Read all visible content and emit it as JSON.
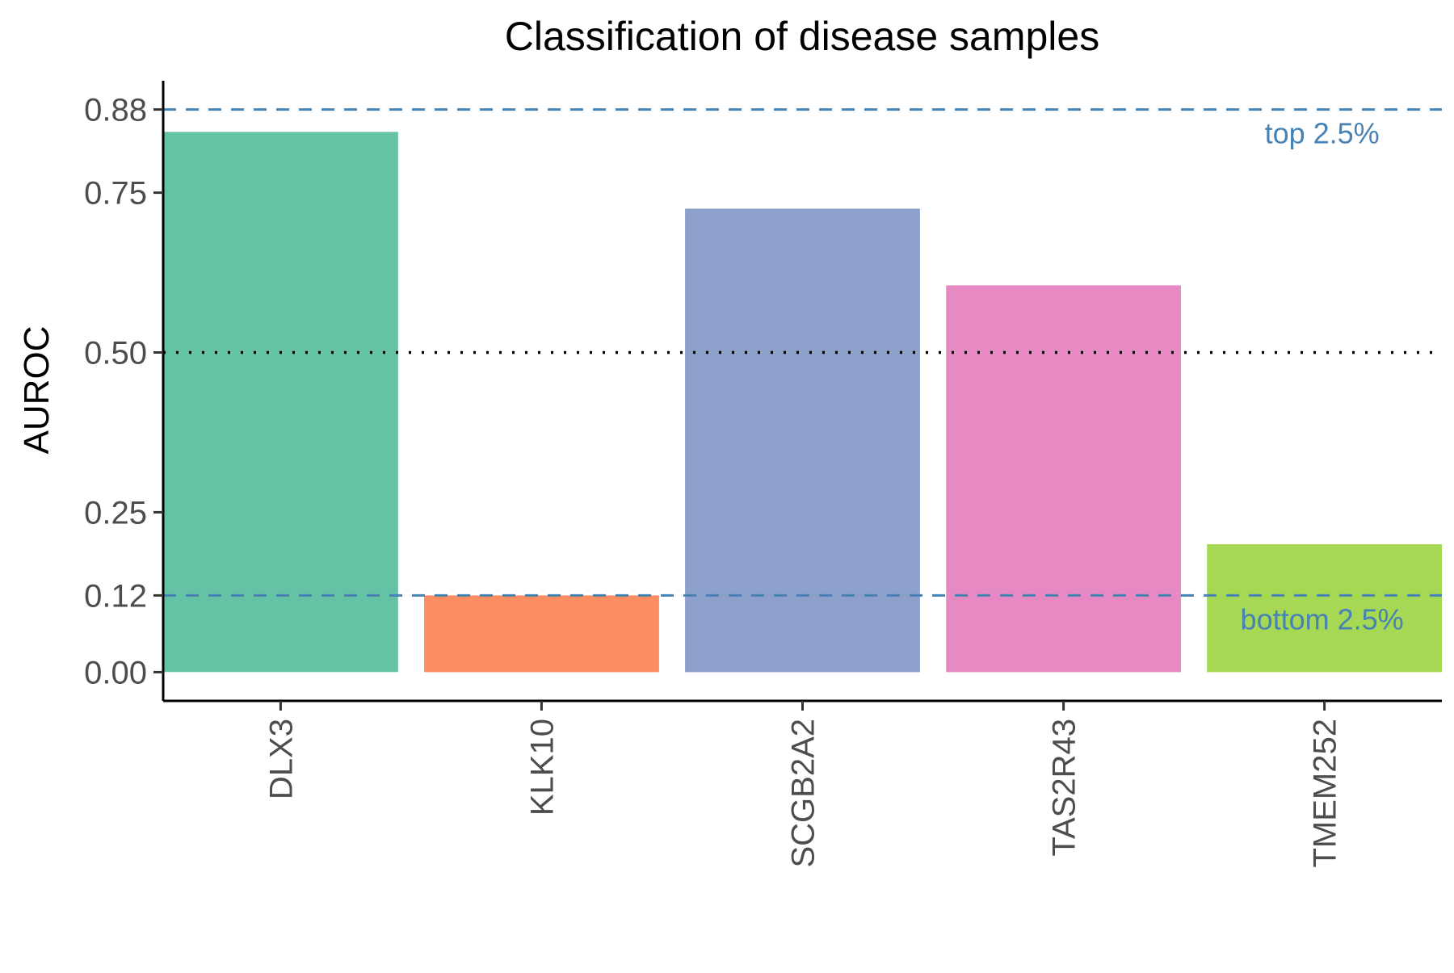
{
  "chart_data": {
    "type": "bar",
    "title": "Classification of disease samples",
    "xlabel": "",
    "ylabel": "AUROC",
    "categories": [
      "DLX3",
      "KLK10",
      "SCGB2A2",
      "TAS2R43",
      "TMEM252"
    ],
    "values": [
      0.845,
      0.12,
      0.725,
      0.605,
      0.2
    ],
    "colors": [
      "#66c2a5",
      "#fc8d62",
      "#8da0cb",
      "#e78ac3",
      "#a6d854"
    ],
    "ylim": [
      -0.045,
      0.925
    ],
    "yticks": [
      {
        "value": 0.0,
        "label": "0.00"
      },
      {
        "value": 0.12,
        "label": "0.12"
      },
      {
        "value": 0.25,
        "label": "0.25"
      },
      {
        "value": 0.5,
        "label": "0.50"
      },
      {
        "value": 0.75,
        "label": "0.75"
      },
      {
        "value": 0.88,
        "label": "0.88"
      }
    ],
    "reference_lines": [
      {
        "value": 0.88,
        "style": "dashed",
        "color": "#4682b4",
        "label": "top 2.5%"
      },
      {
        "value": 0.5,
        "style": "dotted",
        "color": "#000000",
        "label": ""
      },
      {
        "value": 0.12,
        "style": "dashed",
        "color": "#4682b4",
        "label": "bottom 2.5%"
      }
    ],
    "annotation_color": "#4682b4",
    "grid": false,
    "legend": "none"
  }
}
